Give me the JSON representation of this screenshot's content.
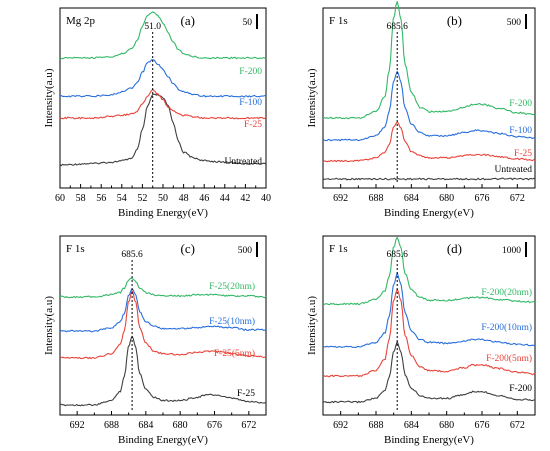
{
  "chart_data": [
    {
      "type": "line",
      "panel": "(a)",
      "element": "Mg 2p",
      "xlabel": "Binding Energy(eV)",
      "ylabel": "Intensity(a.u)",
      "x_ticks": [
        "60",
        "58",
        "56",
        "54",
        "52",
        "50",
        "48",
        "46",
        "44",
        "42",
        "40"
      ],
      "xlim": [
        60,
        40
      ],
      "reference_line": 51.0,
      "reference_label": "51.0",
      "scale_label": "50",
      "series": [
        {
          "name": "Untreated",
          "color": "#404040",
          "x": [
            60,
            57,
            55,
            54,
            53,
            52.5,
            52,
            51.5,
            51,
            50.5,
            50,
            49.5,
            49,
            48.5,
            48,
            47,
            46,
            44,
            42,
            40
          ],
          "y": [
            0.05,
            0.06,
            0.07,
            0.08,
            0.1,
            0.16,
            0.3,
            0.47,
            0.55,
            0.55,
            0.53,
            0.47,
            0.35,
            0.22,
            0.14,
            0.1,
            0.08,
            0.07,
            0.06,
            0.06
          ]
        },
        {
          "name": "F-25",
          "color": "#e8443a",
          "x": [
            60,
            57,
            55,
            54,
            53,
            52.5,
            52,
            51.5,
            51,
            50.5,
            50,
            49.5,
            49,
            48.5,
            48,
            47,
            46,
            44,
            42,
            40
          ],
          "y": [
            0.1,
            0.1,
            0.11,
            0.12,
            0.13,
            0.15,
            0.2,
            0.26,
            0.3,
            0.27,
            0.23,
            0.18,
            0.15,
            0.13,
            0.12,
            0.11,
            0.1,
            0.1,
            0.1,
            0.1
          ]
        },
        {
          "name": "F-100",
          "color": "#2a6fdb",
          "x": [
            60,
            57,
            55,
            54,
            53,
            52.5,
            52,
            51.5,
            51,
            50.5,
            50,
            49.5,
            49,
            48.5,
            48,
            47,
            46,
            44,
            42,
            40
          ],
          "y": [
            0.12,
            0.12,
            0.13,
            0.15,
            0.18,
            0.22,
            0.29,
            0.36,
            0.38,
            0.35,
            0.31,
            0.26,
            0.21,
            0.17,
            0.15,
            0.13,
            0.12,
            0.12,
            0.12,
            0.12
          ]
        },
        {
          "name": "F-200",
          "color": "#33b866",
          "x": [
            60,
            57,
            55,
            54,
            53,
            52.5,
            52,
            51.5,
            51,
            50.5,
            50,
            49.5,
            49,
            48.5,
            48,
            47,
            46,
            44,
            42,
            40
          ],
          "y": [
            0.2,
            0.2,
            0.21,
            0.23,
            0.27,
            0.33,
            0.43,
            0.5,
            0.53,
            0.5,
            0.45,
            0.38,
            0.31,
            0.26,
            0.23,
            0.21,
            0.2,
            0.2,
            0.2,
            0.2
          ]
        }
      ]
    },
    {
      "type": "line",
      "panel": "(b)",
      "element": "F 1s",
      "xlabel": "Binding Energy(eV)",
      "ylabel": "Intensity(a.u)",
      "x_ticks": [
        "692",
        "688",
        "684",
        "680",
        "676",
        "672"
      ],
      "xlim": [
        694,
        670
      ],
      "reference_line": 685.6,
      "reference_label": "685.6",
      "scale_label": "500",
      "series": [
        {
          "name": "Untreated",
          "color": "#404040",
          "x": [
            694,
            690,
            686,
            682,
            678,
            674,
            670
          ],
          "y": [
            0,
            0,
            0,
            0,
            0,
            0,
            0
          ]
        },
        {
          "name": "F-25",
          "color": "#e8443a",
          "x": [
            694,
            690,
            688,
            687,
            686.5,
            686,
            685.6,
            685.2,
            684.7,
            684,
            683,
            682,
            680,
            678,
            677,
            676,
            674,
            672,
            670
          ],
          "y": [
            0,
            0,
            0.03,
            0.08,
            0.16,
            0.32,
            0.37,
            0.32,
            0.18,
            0.09,
            0.05,
            0.03,
            0.03,
            0.05,
            0.06,
            0.06,
            0.04,
            0.02,
            0.01
          ]
        },
        {
          "name": "F-100",
          "color": "#2a6fdb",
          "x": [
            694,
            690,
            688,
            687,
            686.5,
            686,
            685.6,
            685.2,
            684.7,
            684,
            683,
            682,
            680,
            678,
            677,
            676,
            674,
            672,
            670
          ],
          "y": [
            0,
            0,
            0.04,
            0.12,
            0.27,
            0.55,
            0.65,
            0.55,
            0.3,
            0.15,
            0.07,
            0.04,
            0.04,
            0.07,
            0.09,
            0.09,
            0.06,
            0.03,
            0.02
          ]
        },
        {
          "name": "F-200",
          "color": "#33b866",
          "x": [
            694,
            690,
            688,
            687,
            686.5,
            686,
            685.6,
            685.2,
            684.7,
            684,
            683,
            682,
            680,
            678,
            677,
            676,
            674,
            672,
            670
          ],
          "y": [
            0,
            0,
            0.06,
            0.2,
            0.45,
            0.95,
            1.1,
            0.94,
            0.5,
            0.24,
            0.1,
            0.06,
            0.06,
            0.1,
            0.13,
            0.13,
            0.09,
            0.05,
            0.03
          ]
        }
      ]
    },
    {
      "type": "line",
      "panel": "(c)",
      "element": "F 1s",
      "xlabel": "Binding Energy(eV)",
      "ylabel": "Intensity(a.u)",
      "x_ticks": [
        "692",
        "688",
        "684",
        "680",
        "676",
        "672"
      ],
      "xlim": [
        694,
        670
      ],
      "reference_line": 685.6,
      "reference_label": "685.6",
      "scale_label": "500",
      "series": [
        {
          "name": "F-25",
          "color": "#404040",
          "x": [
            694,
            690,
            688,
            687,
            686.5,
            686,
            685.6,
            685.2,
            684.7,
            684,
            683,
            682,
            680,
            678,
            677,
            676,
            674,
            672,
            670
          ],
          "y": [
            0,
            0,
            0.04,
            0.12,
            0.26,
            0.52,
            0.62,
            0.52,
            0.28,
            0.14,
            0.07,
            0.04,
            0.04,
            0.07,
            0.09,
            0.09,
            0.06,
            0.03,
            0.02
          ]
        },
        {
          "name": "F-25(5nm)",
          "color": "#e8443a",
          "x": [
            694,
            690,
            688,
            687,
            686.5,
            686,
            685.6,
            685.2,
            684.7,
            684,
            683,
            682,
            680,
            678,
            677,
            676,
            674,
            672,
            670
          ],
          "y": [
            0,
            0,
            0.04,
            0.12,
            0.25,
            0.5,
            0.6,
            0.5,
            0.27,
            0.13,
            0.06,
            0.04,
            0.03,
            0.05,
            0.06,
            0.06,
            0.04,
            0.02,
            0.01
          ]
        },
        {
          "name": "F-25(10nm)",
          "color": "#2a6fdb",
          "x": [
            694,
            690,
            688,
            687,
            686.5,
            686,
            685.6,
            685.2,
            684.7,
            684,
            683,
            682,
            680,
            678,
            677,
            676,
            674,
            672,
            670
          ],
          "y": [
            0,
            0,
            0.03,
            0.08,
            0.16,
            0.32,
            0.38,
            0.32,
            0.17,
            0.08,
            0.04,
            0.02,
            0.02,
            0.03,
            0.04,
            0.04,
            0.03,
            0.01,
            0.01
          ]
        },
        {
          "name": "F-25(20nm)",
          "color": "#33b866",
          "x": [
            694,
            690,
            688,
            687,
            686.5,
            686,
            685.6,
            685.2,
            684.7,
            684,
            683,
            682,
            680,
            678,
            677,
            676,
            674,
            672,
            670
          ],
          "y": [
            0,
            0,
            0.02,
            0.04,
            0.08,
            0.15,
            0.17,
            0.14,
            0.08,
            0.04,
            0.02,
            0.01,
            0.01,
            0.02,
            0.02,
            0.02,
            0.01,
            0.01,
            0
          ]
        }
      ]
    },
    {
      "type": "line",
      "panel": "(d)",
      "element": "F 1s",
      "xlabel": "Binding Energy(eV)",
      "ylabel": "Intensity(a.u)",
      "x_ticks": [
        "692",
        "688",
        "684",
        "680",
        "676",
        "672"
      ],
      "xlim": [
        694,
        670
      ],
      "reference_line": 685.6,
      "reference_label": "685.6",
      "scale_label": "1000",
      "series": [
        {
          "name": "F-200",
          "color": "#404040",
          "x": [
            694,
            690,
            688,
            687,
            686.5,
            686,
            685.6,
            685.2,
            684.7,
            684,
            683,
            682,
            680,
            678,
            677,
            676,
            674,
            672,
            670
          ],
          "y": [
            0,
            0,
            0.04,
            0.12,
            0.27,
            0.55,
            0.65,
            0.55,
            0.3,
            0.15,
            0.07,
            0.04,
            0.04,
            0.08,
            0.11,
            0.11,
            0.07,
            0.03,
            0.02
          ]
        },
        {
          "name": "F-200(5nm)",
          "color": "#e8443a",
          "x": [
            694,
            690,
            688,
            687,
            686.5,
            686,
            685.6,
            685.2,
            684.7,
            684,
            683,
            682,
            680,
            678,
            677,
            676,
            674,
            672,
            670
          ],
          "y": [
            0,
            0,
            0.06,
            0.18,
            0.4,
            0.82,
            0.95,
            0.82,
            0.44,
            0.22,
            0.1,
            0.06,
            0.05,
            0.09,
            0.12,
            0.12,
            0.08,
            0.04,
            0.02
          ]
        },
        {
          "name": "F-200(10nm)",
          "color": "#2a6fdb",
          "x": [
            694,
            690,
            688,
            687,
            686.5,
            686,
            685.6,
            685.2,
            684.7,
            684,
            683,
            682,
            680,
            678,
            677,
            676,
            674,
            672,
            670
          ],
          "y": [
            0,
            0,
            0.05,
            0.15,
            0.33,
            0.68,
            0.8,
            0.68,
            0.37,
            0.18,
            0.08,
            0.05,
            0.04,
            0.06,
            0.08,
            0.08,
            0.05,
            0.03,
            0.02
          ]
        },
        {
          "name": "F-200(20nm)",
          "color": "#33b866",
          "x": [
            694,
            690,
            688,
            687,
            686.5,
            686,
            685.6,
            685.2,
            684.7,
            684,
            683,
            682,
            680,
            678,
            677,
            676,
            674,
            672,
            670
          ],
          "y": [
            0,
            0,
            0.05,
            0.14,
            0.3,
            0.62,
            0.72,
            0.62,
            0.33,
            0.16,
            0.07,
            0.04,
            0.04,
            0.06,
            0.07,
            0.07,
            0.05,
            0.03,
            0.02
          ]
        }
      ]
    }
  ]
}
